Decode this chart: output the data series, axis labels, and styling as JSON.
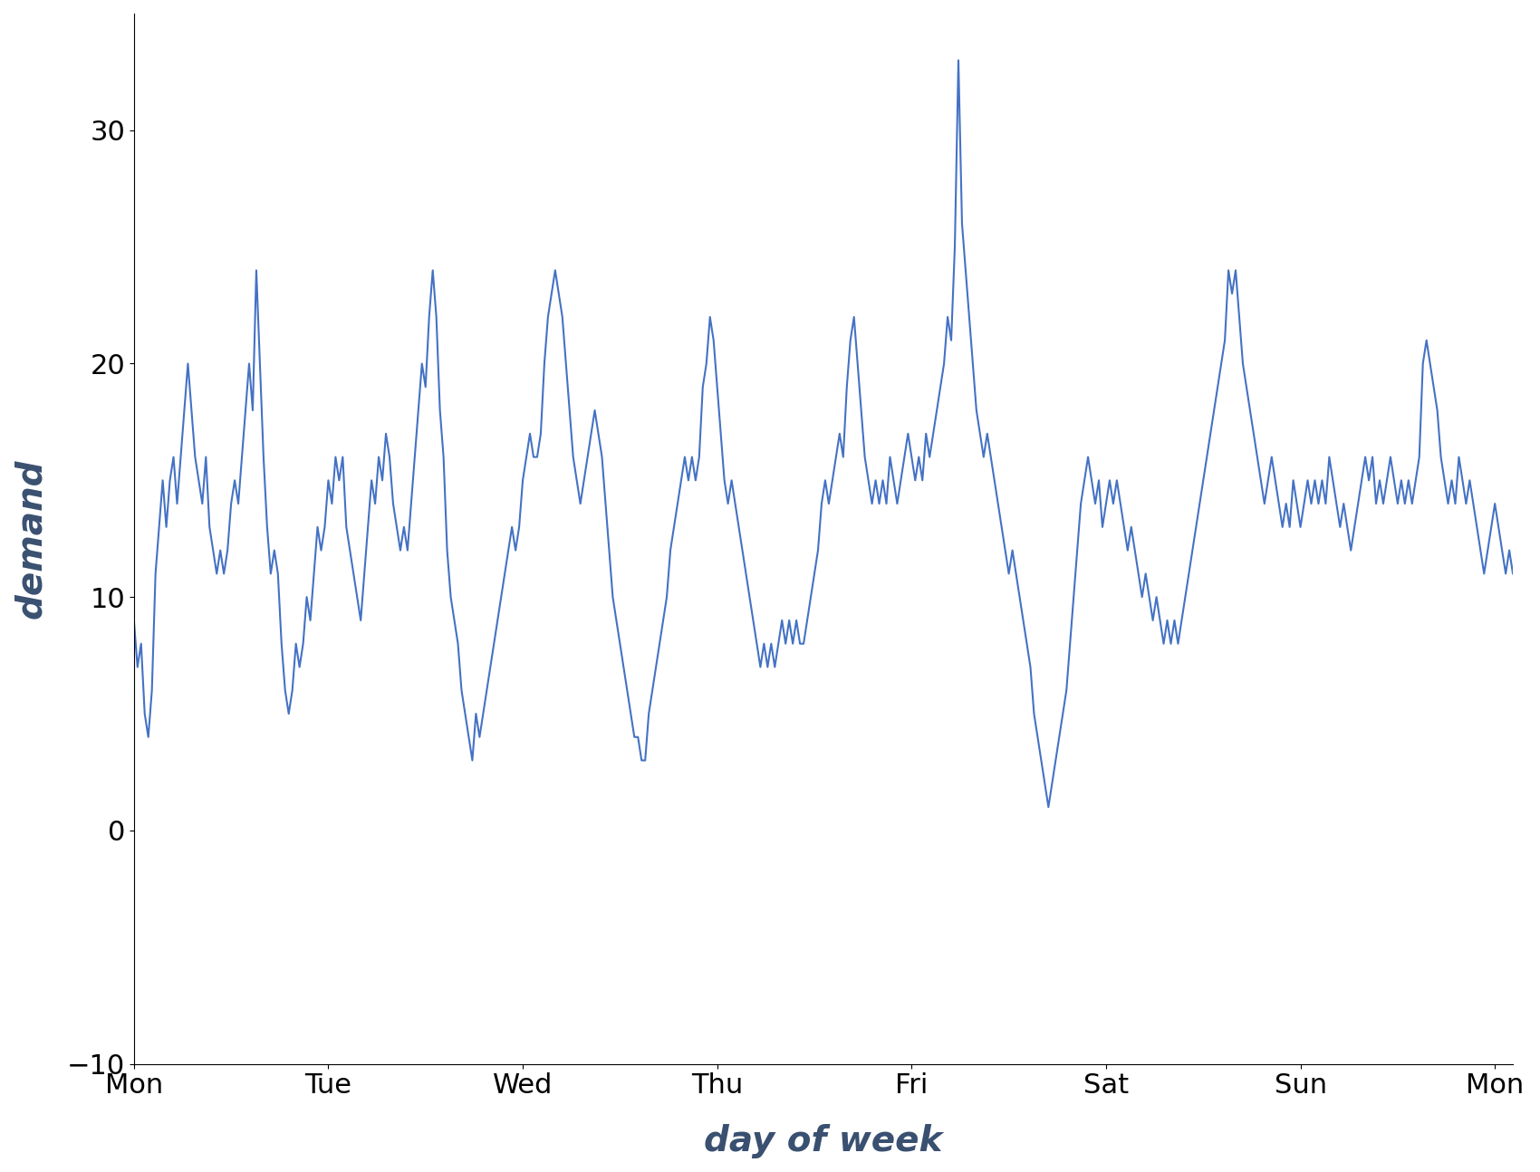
{
  "ylabel": "demand",
  "xlabel": "day of week",
  "line_color": "#4472c4",
  "line_width": 1.5,
  "ylim": [
    -10,
    35
  ],
  "yticks": [
    -10,
    0,
    10,
    20,
    30
  ],
  "label_color": "#3a5070",
  "label_fontsize": 28,
  "tick_fontsize": 22,
  "days": [
    "Mon",
    "Tue",
    "Wed",
    "Thu",
    "Fri",
    "Sat",
    "Sun",
    "Mon"
  ],
  "values": [
    9,
    7,
    8,
    5,
    4,
    6,
    11,
    13,
    15,
    13,
    15,
    16,
    14,
    16,
    18,
    20,
    18,
    16,
    15,
    14,
    16,
    13,
    12,
    11,
    12,
    11,
    12,
    14,
    15,
    14,
    16,
    18,
    20,
    18,
    24,
    20,
    16,
    13,
    11,
    12,
    11,
    8,
    6,
    5,
    6,
    8,
    7,
    8,
    10,
    9,
    11,
    13,
    12,
    13,
    15,
    14,
    16,
    15,
    16,
    13,
    12,
    11,
    10,
    9,
    11,
    13,
    15,
    14,
    16,
    15,
    17,
    16,
    14,
    13,
    12,
    13,
    12,
    14,
    16,
    18,
    20,
    19,
    22,
    24,
    22,
    18,
    16,
    12,
    10,
    9,
    8,
    6,
    5,
    4,
    3,
    5,
    4,
    5,
    6,
    7,
    8,
    9,
    10,
    11,
    12,
    13,
    12,
    13,
    15,
    16,
    17,
    16,
    16,
    17,
    20,
    22,
    23,
    24,
    23,
    22,
    20,
    18,
    16,
    15,
    14,
    15,
    16,
    17,
    18,
    17,
    16,
    14,
    12,
    10,
    9,
    8,
    7,
    6,
    5,
    4,
    4,
    3,
    3,
    5,
    6,
    7,
    8,
    9,
    10,
    12,
    13,
    14,
    15,
    16,
    15,
    16,
    15,
    16,
    19,
    20,
    22,
    21,
    19,
    17,
    15,
    14,
    15,
    14,
    13,
    12,
    11,
    10,
    9,
    8,
    7,
    8,
    7,
    8,
    7,
    8,
    9,
    8,
    9,
    8,
    9,
    8,
    8,
    9,
    10,
    11,
    12,
    14,
    15,
    14,
    15,
    16,
    17,
    16,
    19,
    21,
    22,
    20,
    18,
    16,
    15,
    14,
    15,
    14,
    15,
    14,
    16,
    15,
    14,
    15,
    16,
    17,
    16,
    15,
    16,
    15,
    17,
    16,
    17,
    18,
    19,
    20,
    22,
    21,
    25,
    33,
    26,
    24,
    22,
    20,
    18,
    17,
    16,
    17,
    16,
    15,
    14,
    13,
    12,
    11,
    12,
    11,
    10,
    9,
    8,
    7,
    5,
    4,
    3,
    2,
    1,
    2,
    3,
    4,
    5,
    6,
    8,
    10,
    12,
    14,
    15,
    16,
    15,
    14,
    15,
    13,
    14,
    15,
    14,
    15,
    14,
    13,
    12,
    13,
    12,
    11,
    10,
    11,
    10,
    9,
    10,
    9,
    8,
    9,
    8,
    9,
    8,
    9,
    10,
    11,
    12,
    13,
    14,
    15,
    16,
    17,
    18,
    19,
    20,
    21,
    24,
    23,
    24,
    22,
    20,
    19,
    18,
    17,
    16,
    15,
    14,
    15,
    16,
    15,
    14,
    13,
    14,
    13,
    15,
    14,
    13,
    14,
    15,
    14,
    15,
    14,
    15,
    14,
    16,
    15,
    14,
    13,
    14,
    13,
    12,
    13,
    14,
    15,
    16,
    15,
    16,
    14,
    15,
    14,
    15,
    16,
    15,
    14,
    15,
    14,
    15,
    14,
    15,
    16,
    20,
    21,
    20,
    19,
    18,
    16,
    15,
    14,
    15,
    14,
    16,
    15,
    14,
    15,
    14,
    13,
    12,
    11,
    12,
    13,
    14,
    13,
    12,
    11,
    12,
    11
  ]
}
